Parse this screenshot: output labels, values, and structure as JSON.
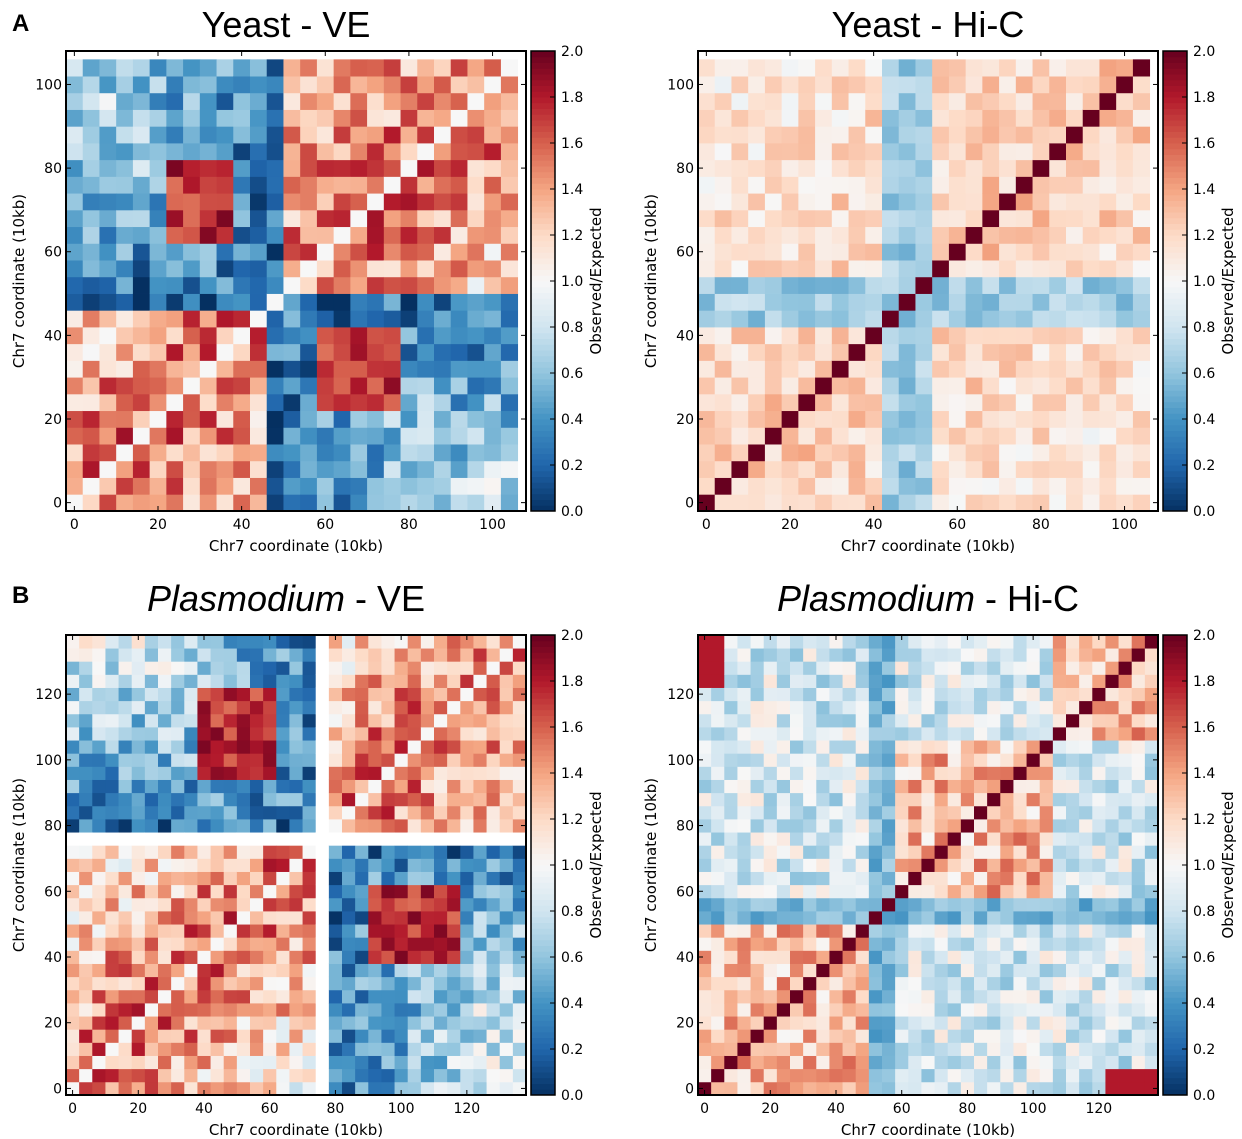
{
  "panels": {
    "a": {
      "letter": "A"
    },
    "b": {
      "letter": "B"
    }
  },
  "chart_data": [
    {
      "type": "heatmap",
      "title": "Yeast - VE",
      "title_italic": "",
      "title_rest": "Yeast - VE",
      "xlabel": "Chr7 coordinate (10kb)",
      "ylabel": "Chr7 coordinate (10kb)",
      "xlim": [
        -2,
        108
      ],
      "ylim": [
        -2,
        108
      ],
      "xticks": [
        0,
        20,
        40,
        60,
        80,
        100
      ],
      "yticks": [
        0,
        20,
        40,
        60,
        80,
        100
      ],
      "bins": 27,
      "bin_size": 4,
      "pattern": "ve",
      "features": {
        "centromere": 48,
        "blocks": [
          [
            22,
            38,
            62,
            80
          ],
          [
            58,
            76,
            22,
            42
          ]
        ]
      },
      "colorbar": {
        "label": "Observed/Expected",
        "range": [
          0.0,
          2.0
        ],
        "ticks": [
          "0.0",
          "0.2",
          "0.4",
          "0.6",
          "0.8",
          "1.0",
          "1.2",
          "1.4",
          "1.6",
          "1.8",
          "2.0"
        ]
      },
      "seed": 11
    },
    {
      "type": "heatmap",
      "title": "Yeast - Hi-C",
      "title_italic": "",
      "title_rest": "Yeast - Hi-C",
      "xlabel": "Chr7 coordinate (10kb)",
      "ylabel": "Chr7 coordinate (10kb)",
      "xlim": [
        -2,
        108
      ],
      "ylim": [
        -2,
        108
      ],
      "xticks": [
        0,
        20,
        40,
        60,
        80,
        100
      ],
      "yticks": [
        0,
        20,
        40,
        60,
        80,
        100
      ],
      "bins": 27,
      "bin_size": 4,
      "pattern": "hic_yeast",
      "features": {
        "centromere": 48
      },
      "colorbar": {
        "label": "Observed/Expected",
        "range": [
          0.0,
          2.0
        ],
        "ticks": [
          "0.0",
          "0.2",
          "0.4",
          "0.6",
          "0.8",
          "1.0",
          "1.2",
          "1.4",
          "1.6",
          "1.8",
          "2.0"
        ]
      },
      "seed": 23
    },
    {
      "type": "heatmap",
      "title": "Plasmodium - VE",
      "title_italic": "Plasmodium",
      "title_rest": " - VE",
      "xlabel": "Chr7 coordinate (10kb)",
      "ylabel": "Chr7 coordinate (10kb)",
      "xlim": [
        -2,
        138
      ],
      "ylim": [
        -2,
        138
      ],
      "xticks": [
        0,
        20,
        40,
        60,
        80,
        100,
        120
      ],
      "yticks": [
        0,
        20,
        40,
        60,
        80,
        100,
        120
      ],
      "bins": 35,
      "bin_size": 4,
      "pattern": "ve",
      "features": {
        "centromere": 76,
        "gap": 76,
        "blocks": [
          [
            40,
            62,
            96,
            120
          ],
          [
            90,
            118,
            40,
            62
          ]
        ]
      },
      "colorbar": {
        "label": "Observed/Expected",
        "range": [
          0.0,
          2.0
        ],
        "ticks": [
          "0.0",
          "0.2",
          "0.4",
          "0.6",
          "0.8",
          "1.0",
          "1.2",
          "1.4",
          "1.6",
          "1.8",
          "2.0"
        ]
      },
      "seed": 37
    },
    {
      "type": "heatmap",
      "title": "Plasmodium - Hi-C",
      "title_italic": "Plasmodium",
      "title_rest": " - Hi-C",
      "xlabel": "Chr7 coordinate (10kb)",
      "ylabel": "Chr7 coordinate (10kb)",
      "xlim": [
        -2,
        138
      ],
      "ylim": [
        -2,
        138
      ],
      "xticks": [
        0,
        20,
        40,
        60,
        80,
        100,
        120
      ],
      "yticks": [
        0,
        20,
        40,
        60,
        80,
        100,
        120
      ],
      "bins": 35,
      "bin_size": 4,
      "pattern": "hic_plasmo",
      "features": {
        "centromere": 54,
        "domains": [
          [
            0,
            52
          ],
          [
            52,
            108
          ],
          [
            108,
            140
          ]
        ]
      },
      "colorbar": {
        "label": "Observed/Expected",
        "range": [
          0.0,
          2.0
        ],
        "ticks": [
          "0.0",
          "0.2",
          "0.4",
          "0.6",
          "0.8",
          "1.0",
          "1.2",
          "1.4",
          "1.6",
          "1.8",
          "2.0"
        ]
      },
      "seed": 53
    }
  ]
}
